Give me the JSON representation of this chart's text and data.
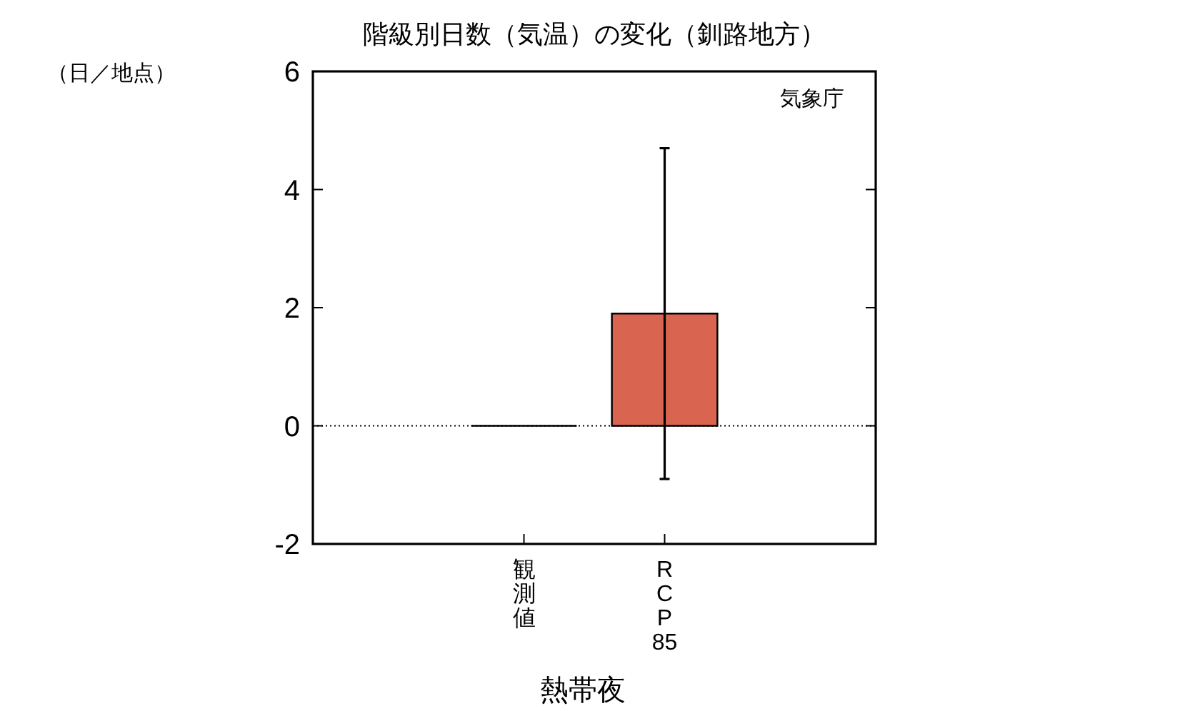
{
  "chart_data": {
    "type": "bar",
    "title": "階級別日数（気温）の変化（釧路地方）",
    "ylabel": "（日／地点）",
    "xlabel": "熱帯夜",
    "annotations": [
      "気象庁"
    ],
    "categories": [
      "観測値",
      "RCP85"
    ],
    "values": [
      0,
      1.9
    ],
    "errors": [
      null,
      [
        -0.9,
        4.7
      ]
    ],
    "colors": [
      "#000000",
      "#d96450"
    ],
    "ylim": [
      -2,
      6
    ],
    "yticks": [
      -2,
      0,
      2,
      4,
      6
    ],
    "ref_lines": [
      {
        "axis": "y",
        "value": 0,
        "line_style": "dotted",
        "color": "#000000"
      }
    ]
  }
}
